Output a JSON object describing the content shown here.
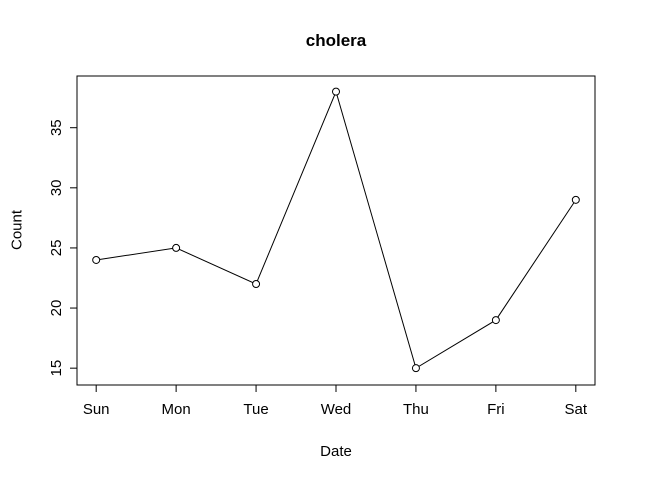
{
  "figure": {
    "background": "#ffffff"
  },
  "chart_data": {
    "type": "line",
    "title": "cholera",
    "xlabel": "Date",
    "ylabel": "Count",
    "categories": [
      "Sun",
      "Mon",
      "Tue",
      "Wed",
      "Thu",
      "Fri",
      "Sat"
    ],
    "values": [
      24,
      25,
      22,
      38,
      15,
      19,
      29
    ],
    "yticks": [
      15,
      20,
      25,
      30,
      35
    ],
    "ylim": [
      13.6,
      39.3
    ],
    "grid": false,
    "legend": false,
    "marker": "open-circle",
    "marker_fill": "#ffffff",
    "line_color": "#000000",
    "text_color": "#000000"
  }
}
